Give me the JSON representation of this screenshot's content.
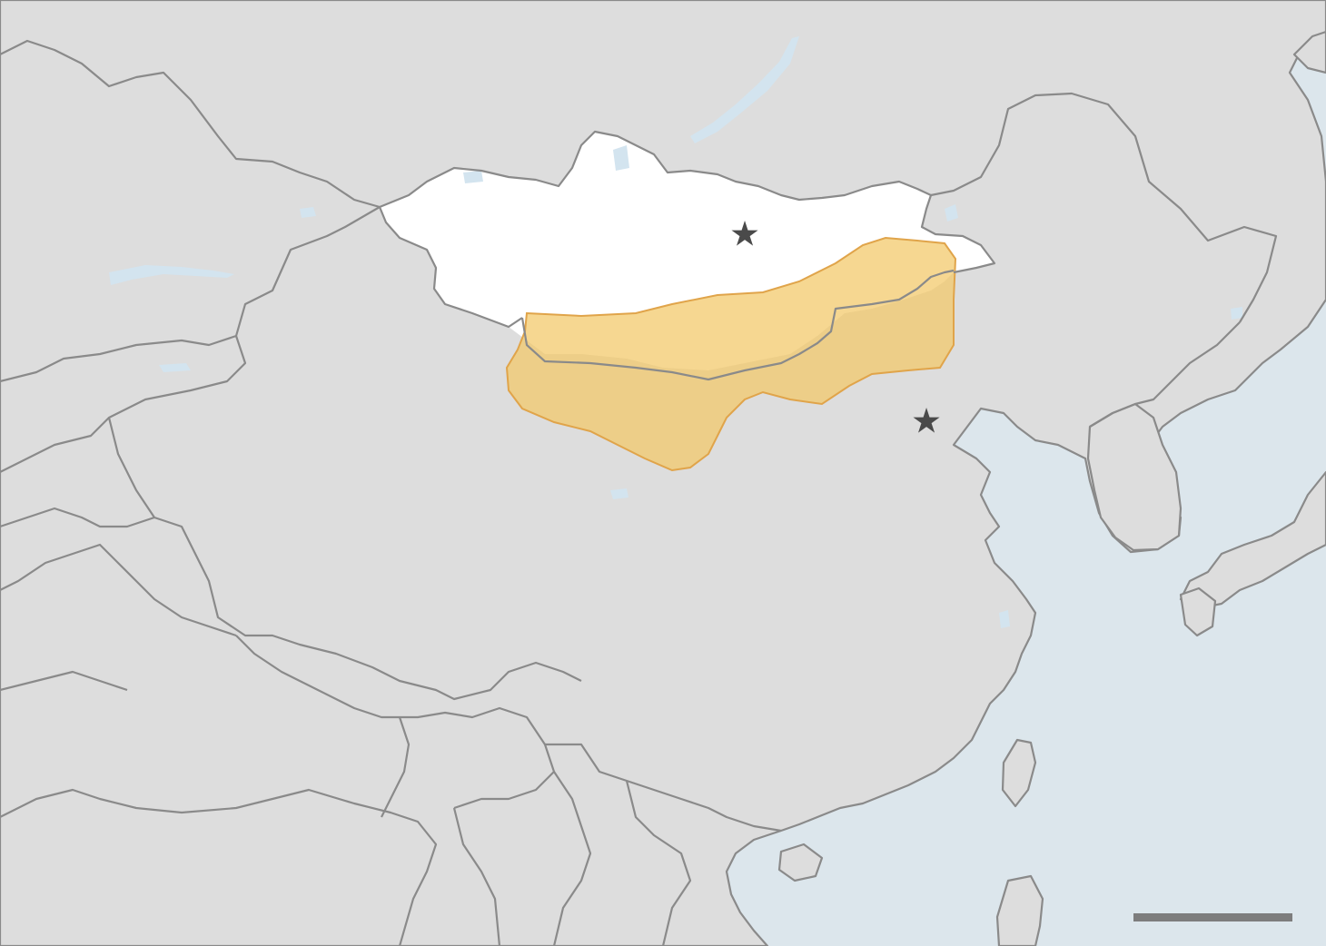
{
  "map": {
    "colors": {
      "sea": "#dce6ec",
      "land": "#dddddd",
      "highlight_country": "#ffffff",
      "lake": "#d3e4ef",
      "region_fill": "#f2c867",
      "region_stroke": "#e0a44a",
      "border": "#8a8a8a",
      "marker": "#4a4a4a",
      "scale_bar": "#7d7d7d"
    },
    "highlighted_country": "mongolia",
    "shaded_region": "gobi-desert",
    "markers": [
      {
        "id": "ulaanbaatar",
        "symbol": "★"
      },
      {
        "id": "beijing",
        "symbol": "★"
      }
    ],
    "scale_bar_label": ""
  }
}
